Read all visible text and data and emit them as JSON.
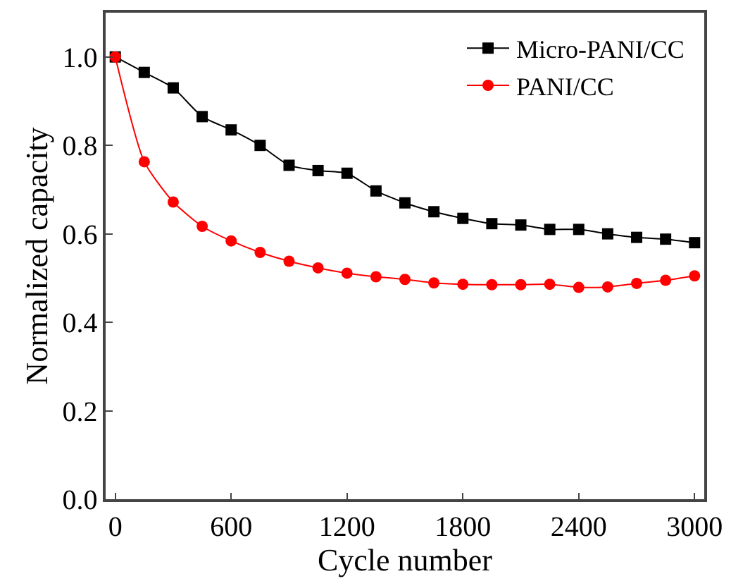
{
  "chart_data": {
    "type": "line",
    "xlabel": "Cycle number",
    "ylabel": "Normalized capacity",
    "x": [
      0,
      150,
      300,
      450,
      600,
      750,
      900,
      1050,
      1200,
      1350,
      1500,
      1650,
      1800,
      1950,
      2100,
      2250,
      2400,
      2550,
      2700,
      2850,
      3000
    ],
    "series": [
      {
        "name": "Micro-PANI/CC",
        "color": "#000000",
        "marker": "square",
        "values": [
          1.0,
          0.965,
          0.93,
          0.865,
          0.835,
          0.8,
          0.755,
          0.743,
          0.737,
          0.697,
          0.67,
          0.65,
          0.635,
          0.623,
          0.62,
          0.61,
          0.61,
          0.6,
          0.592,
          0.588,
          0.58
        ]
      },
      {
        "name": "PANI/CC",
        "color": "#ff0000",
        "marker": "circle",
        "values": [
          1.0,
          0.763,
          0.672,
          0.617,
          0.584,
          0.558,
          0.538,
          0.523,
          0.511,
          0.503,
          0.497,
          0.489,
          0.486,
          0.485,
          0.485,
          0.486,
          0.479,
          0.48,
          0.488,
          0.495,
          0.505
        ]
      }
    ],
    "xlim": [
      -50,
      3050
    ],
    "xticks": [
      0,
      600,
      1200,
      1800,
      2400,
      3000
    ],
    "ylim": [
      0,
      1.1
    ],
    "yticks": [
      {
        "value": 0,
        "label": "0.0"
      },
      {
        "value": 0.2,
        "label": "0.2"
      },
      {
        "value": 0.4,
        "label": "0.4"
      },
      {
        "value": 0.6,
        "label": "0.6"
      },
      {
        "value": 0.8,
        "label": "0.8"
      },
      {
        "value": 1,
        "label": "1.0"
      }
    ],
    "grid": false,
    "legend": "top right",
    "line_style": "solid"
  }
}
